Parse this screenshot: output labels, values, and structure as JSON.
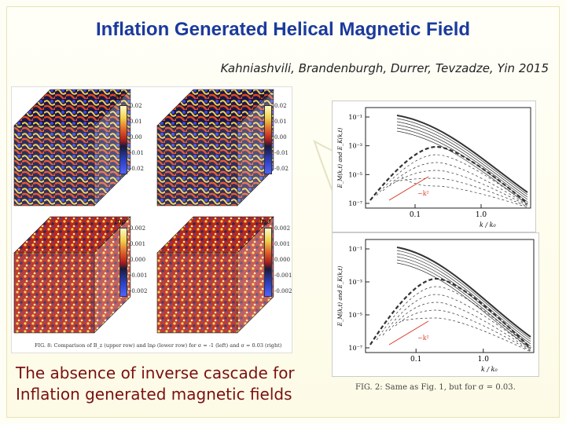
{
  "slide": {
    "title": "Inflation Generated Helical Magnetic Field",
    "authors": "Kahniashvili, Brandenburgh, Durrer, Tevzadze, Yin  2015",
    "caption_line1": "The absence of inverse cascade for",
    "caption_line2": "Inflation generated magnetic fields"
  },
  "left_figure": {
    "labels": [
      "Bz",
      "Bz",
      "lnρ",
      "lnρ"
    ],
    "top_ticks": [
      "0.02",
      "0.01",
      "0.00",
      "-0.01",
      "-0.02"
    ],
    "bottom_ticks": [
      "0.002",
      "0.001",
      "0.000",
      "-0.001",
      "-0.002"
    ],
    "caption": "FIG. 8: Comparison of B_z (upper row) and lnρ (lower row) for σ = -1 (left) and σ = 0.03 (right)"
  },
  "right_figure": {
    "caption": "FIG. 2: Same as Fig. 1, but for σ = 0.03.",
    "chart_data": [
      {
        "type": "line",
        "xlabel": "k / k₀",
        "ylabel": "E_M(k,t) and E_K(k,t)",
        "x_ticks": [
          "0.1",
          "1.0"
        ],
        "y_ticks": [
          "10⁻¹",
          "10⁻³",
          "10⁻⁵",
          "10⁻⁷"
        ],
        "annotation": "~k²"
      },
      {
        "type": "line",
        "xlabel": "k / k₀",
        "ylabel": "E_M(k,t) and E_K(k,t)",
        "x_ticks": [
          "0.1",
          "1.0"
        ],
        "y_ticks": [
          "10⁻¹",
          "10⁻³",
          "10⁻⁵",
          "10⁻⁷"
        ],
        "annotation": "~k²"
      }
    ]
  }
}
